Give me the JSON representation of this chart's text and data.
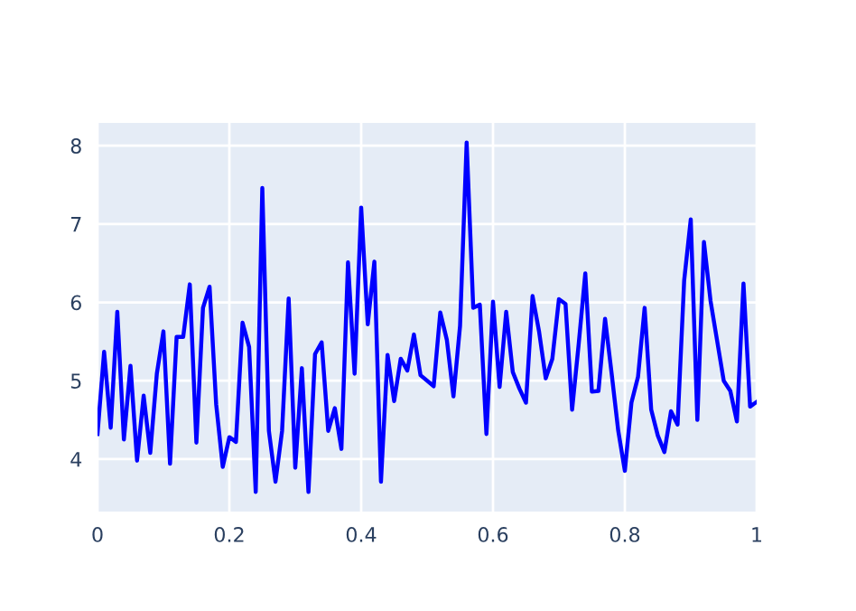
{
  "chart_data": {
    "type": "line",
    "x": [
      0,
      0.01,
      0.02,
      0.03,
      0.04,
      0.05,
      0.06,
      0.07,
      0.08,
      0.09,
      0.1,
      0.11,
      0.12,
      0.13,
      0.14,
      0.15,
      0.16,
      0.17,
      0.18,
      0.19,
      0.2,
      0.21,
      0.22,
      0.23,
      0.24,
      0.25,
      0.26,
      0.27,
      0.28,
      0.29,
      0.3,
      0.31,
      0.32,
      0.33,
      0.34,
      0.35,
      0.36,
      0.37,
      0.38,
      0.39,
      0.4,
      0.41,
      0.42,
      0.43,
      0.44,
      0.45,
      0.46,
      0.47,
      0.48,
      0.49,
      0.51,
      0.52,
      0.53,
      0.54,
      0.55,
      0.56,
      0.57,
      0.58,
      0.59,
      0.6,
      0.61,
      0.62,
      0.63,
      0.64,
      0.65,
      0.66,
      0.67,
      0.68,
      0.69,
      0.7,
      0.71,
      0.72,
      0.73,
      0.74,
      0.75,
      0.76,
      0.77,
      0.78,
      0.79,
      0.8,
      0.81,
      0.82,
      0.83,
      0.84,
      0.85,
      0.86,
      0.87,
      0.88,
      0.89,
      0.9,
      0.91,
      0.92,
      0.93,
      0.94,
      0.95,
      0.96,
      0.97,
      0.98,
      0.99,
      1
    ],
    "series": [
      {
        "color": "#0000ff",
        "values": [
          4.32,
          5.37,
          4.4,
          5.88,
          4.25,
          5.19,
          3.98,
          4.81,
          4.08,
          5.09,
          5.63,
          3.94,
          5.56,
          5.56,
          6.23,
          4.21,
          5.93,
          6.2,
          4.7,
          3.9,
          4.28,
          4.22,
          5.74,
          5.43,
          3.58,
          7.46,
          4.36,
          3.71,
          4.36,
          6.05,
          3.89,
          5.16,
          3.58,
          5.34,
          5.49,
          4.36,
          4.65,
          4.13,
          6.51,
          5.09,
          7.21,
          5.72,
          6.52,
          3.71,
          5.33,
          4.74,
          5.28,
          5.13,
          5.59,
          5.07,
          4.93,
          5.87,
          5.52,
          4.8,
          5.7,
          8.04,
          5.93,
          5.97,
          4.32,
          6.01,
          4.92,
          5.88,
          5.11,
          4.9,
          4.72,
          6.08,
          5.62,
          5.03,
          5.28,
          6.04,
          5.98,
          4.63,
          5.47,
          6.37,
          4.86,
          4.87,
          5.79,
          5.09,
          4.36,
          3.85,
          4.72,
          5.05,
          5.93,
          4.63,
          4.3,
          4.09,
          4.61,
          4.44,
          6.28,
          7.06,
          4.5,
          6.77,
          6.02,
          5.51,
          5.0,
          4.87,
          4.48,
          6.24,
          4.67,
          4.73
        ]
      }
    ],
    "xlim": [
      0,
      1
    ],
    "xticks": [
      0,
      0.2,
      0.4,
      0.6,
      0.8,
      1
    ],
    "ylim": [
      3.33,
      8.29
    ],
    "yticks": [
      4,
      5,
      6,
      7,
      8
    ],
    "grid": true,
    "marker": "none",
    "line_style": "solid",
    "legend": false
  }
}
